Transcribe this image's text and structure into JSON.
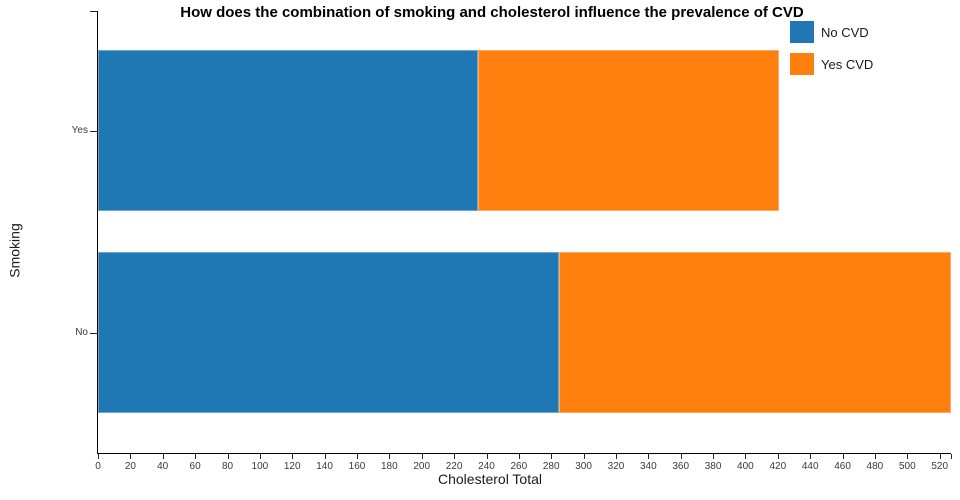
{
  "chart_data": {
    "type": "bar",
    "orientation": "horizontal",
    "stacked": true,
    "title": "How does the combination of smoking and cholesterol influence the prevalence of CVD",
    "xlabel": "Cholesterol Total",
    "ylabel": "Smoking",
    "categories": [
      "Yes",
      "No"
    ],
    "series": [
      {
        "name": "No CVD",
        "color": "#1f77b4",
        "values": [
          235,
          285
        ]
      },
      {
        "name": "Yes CVD",
        "color": "#ff7f0e",
        "values": [
          186,
          242
        ]
      }
    ],
    "totals": [
      421,
      527
    ],
    "xlim": [
      0,
      527
    ],
    "x_ticks": [
      0,
      20,
      40,
      60,
      80,
      100,
      120,
      140,
      160,
      180,
      200,
      220,
      240,
      260,
      280,
      300,
      320,
      340,
      360,
      380,
      400,
      420,
      440,
      460,
      480,
      500,
      520
    ],
    "grid": false,
    "legend_position": "upper right"
  }
}
